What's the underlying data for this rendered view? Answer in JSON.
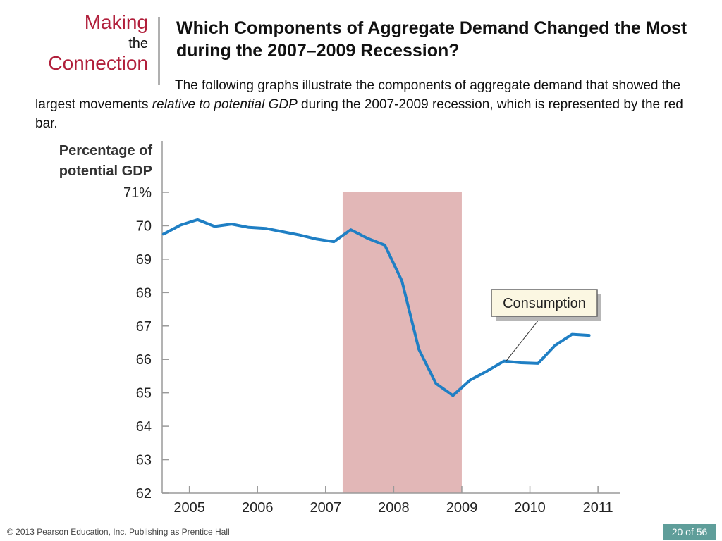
{
  "header": {
    "making": "Making",
    "the": "the",
    "connection": "Connection",
    "title": "Which Components of Aggregate Demand Changed the Most during the 2007–2009 Recession?"
  },
  "body": {
    "part1": "The following graphs illustrate the components of aggregate demand that showed the largest movements ",
    "italic": "relative to potential GDP",
    "part2": " during the 2007-2009 recession, which is represented by the red bar."
  },
  "footer": {
    "copyright": "© 2013 Pearson Education, Inc. Publishing as Prentice Hall",
    "page_indicator": "20 of 56"
  },
  "colors": {
    "accent": "#b11f3b",
    "line": "#1f7fc4",
    "recession_bar": "#e2b7b7",
    "badge": "#5f9e9a"
  },
  "chart_data": {
    "type": "line",
    "ylabel_line1": "Percentage of",
    "ylabel_line2": "potential GDP",
    "ylim": [
      62,
      71
    ],
    "xlim": [
      2004.6,
      2011.33
    ],
    "yticks": [
      62,
      63,
      64,
      65,
      66,
      67,
      68,
      69,
      70,
      71
    ],
    "ytick_labels": [
      "62",
      "63",
      "64",
      "65",
      "66",
      "67",
      "68",
      "69",
      "70",
      "71%"
    ],
    "xticks": [
      2005,
      2006,
      2007,
      2008,
      2009,
      2010,
      2011
    ],
    "xtick_labels": [
      "2005",
      "2006",
      "2007",
      "2008",
      "2009",
      "2010",
      "2011"
    ],
    "grid": false,
    "recession": {
      "start": 2007.25,
      "end": 2009.0
    },
    "annotation": {
      "text": "Consumption",
      "points_to": [
        2009.65,
        65.95
      ]
    },
    "series": [
      {
        "x": [
          2004.62,
          2004.87,
          2005.12,
          2005.37,
          2005.62,
          2005.87,
          2006.12,
          2006.37,
          2006.62,
          2006.87,
          2007.12,
          2007.37,
          2007.62,
          2007.87,
          2008.12,
          2008.37,
          2008.62,
          2008.87,
          2009.12,
          2009.37,
          2009.62,
          2009.87,
          2010.12,
          2010.37,
          2010.62,
          2010.87
        ],
        "values": [
          69.75,
          70.02,
          70.18,
          69.98,
          70.05,
          69.95,
          69.92,
          69.82,
          69.72,
          69.6,
          69.52,
          69.88,
          69.62,
          69.42,
          68.35,
          66.3,
          65.28,
          64.92,
          65.38,
          65.65,
          65.95,
          65.9,
          65.88,
          66.42,
          66.75,
          66.72
        ]
      }
    ]
  }
}
